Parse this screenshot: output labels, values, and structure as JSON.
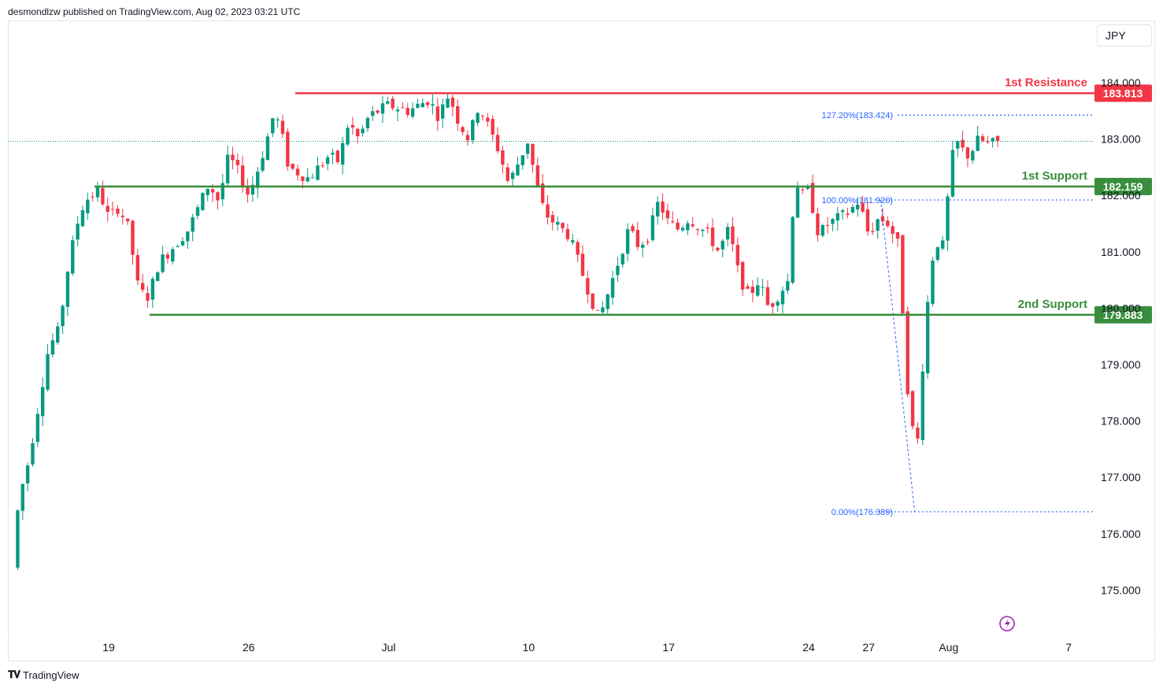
{
  "publisher": "desmondlzw published on TradingView.com, Aug 02, 2023 03:21 UTC",
  "currency": "JPY",
  "footer": "TradingView",
  "colors": {
    "up": "#089981",
    "down": "#f23645",
    "resistance": "#f23645",
    "support": "#388e3c",
    "fib": "#2962ff"
  },
  "chart_data": {
    "type": "candlestick",
    "ylim": [
      174.5,
      184.6
    ],
    "price_ticks": [
      "175.000",
      "176.000",
      "177.000",
      "178.000",
      "179.000",
      "180.000",
      "181.000",
      "182.000",
      "183.000",
      "184.000"
    ],
    "date_ticks": [
      {
        "label": "19",
        "t": 0
      },
      {
        "label": "26",
        "t": 7
      },
      {
        "label": "Jul",
        "t": 14
      },
      {
        "label": "10",
        "t": 21
      },
      {
        "label": "17",
        "t": 28
      },
      {
        "label": "24",
        "t": 35
      },
      {
        "label": "27",
        "t": 38
      },
      {
        "label": "Aug",
        "t": 42
      },
      {
        "label": "7",
        "t": 48
      }
    ],
    "levels": [
      {
        "name": "1st Resistance",
        "value": 183.813,
        "label": "183.813",
        "kind": "resistance"
      },
      {
        "name": "1st Support",
        "value": 182.159,
        "label": "182.159",
        "kind": "support"
      },
      {
        "name": "2nd Support",
        "value": 179.883,
        "label": "179.883",
        "kind": "support"
      }
    ],
    "fibs": [
      {
        "label": "127.20%(183.424)",
        "value": 183.424
      },
      {
        "label": "100.00%(181.920)",
        "value": 181.92
      },
      {
        "label": "0.00%(176.389)",
        "value": 176.389
      }
    ],
    "last_price": 182.96,
    "anchors": [
      [
        -4.8,
        175.4
      ],
      [
        -4.5,
        176.6
      ],
      [
        -4.0,
        177.3
      ],
      [
        -3.5,
        178.3
      ],
      [
        -3.0,
        179.3
      ],
      [
        -2.5,
        179.6
      ],
      [
        -2.0,
        180.8
      ],
      [
        -1.5,
        181.6
      ],
      [
        -1.2,
        181.9
      ],
      [
        -0.5,
        182.1
      ],
      [
        0.0,
        181.6
      ],
      [
        0.5,
        181.8
      ],
      [
        1.0,
        181.4
      ],
      [
        1.5,
        180.3
      ],
      [
        2.0,
        180.2
      ],
      [
        2.5,
        180.8
      ],
      [
        3.0,
        181.0
      ],
      [
        4.0,
        181.4
      ],
      [
        5.0,
        182.2
      ],
      [
        5.5,
        181.9
      ],
      [
        6.0,
        182.7
      ],
      [
        6.5,
        182.4
      ],
      [
        7.0,
        182.0
      ],
      [
        7.5,
        182.5
      ],
      [
        8.0,
        183.1
      ],
      [
        8.3,
        183.5
      ],
      [
        8.7,
        183.0
      ],
      [
        9.0,
        182.5
      ],
      [
        10.0,
        182.3
      ],
      [
        11.0,
        182.7
      ],
      [
        11.5,
        182.6
      ],
      [
        12.0,
        183.3
      ],
      [
        12.5,
        183.0
      ],
      [
        13.0,
        183.4
      ],
      [
        14.0,
        183.6
      ],
      [
        15.0,
        183.5
      ],
      [
        16.0,
        183.7
      ],
      [
        16.5,
        183.4
      ],
      [
        17.0,
        183.8
      ],
      [
        17.5,
        183.3
      ],
      [
        18.0,
        183.0
      ],
      [
        18.5,
        183.6
      ],
      [
        19.0,
        183.2
      ],
      [
        19.5,
        182.8
      ],
      [
        20.0,
        182.2
      ],
      [
        20.5,
        182.6
      ],
      [
        21.0,
        183.0
      ],
      [
        21.3,
        182.3
      ],
      [
        21.7,
        181.8
      ],
      [
        22.0,
        181.6
      ],
      [
        23.0,
        181.3
      ],
      [
        23.5,
        180.8
      ],
      [
        24.0,
        180.3
      ],
      [
        24.5,
        179.8
      ],
      [
        25.0,
        180.3
      ],
      [
        26.0,
        181.4
      ],
      [
        26.5,
        181.1
      ],
      [
        27.0,
        181.3
      ],
      [
        27.5,
        181.9
      ],
      [
        28.0,
        181.5
      ],
      [
        28.5,
        181.4
      ],
      [
        29.0,
        181.6
      ],
      [
        30.0,
        181.3
      ],
      [
        30.5,
        181.0
      ],
      [
        31.0,
        181.4
      ],
      [
        31.5,
        180.6
      ],
      [
        32.0,
        180.2
      ],
      [
        32.5,
        180.5
      ],
      [
        33.0,
        180.0
      ],
      [
        34.0,
        180.5
      ],
      [
        34.3,
        182.3
      ],
      [
        34.7,
        182.0
      ],
      [
        35.0,
        182.1
      ],
      [
        35.5,
        181.3
      ],
      [
        36.0,
        181.5
      ],
      [
        37.0,
        181.7
      ],
      [
        37.5,
        181.9
      ],
      [
        38.0,
        181.3
      ],
      [
        38.5,
        181.6
      ],
      [
        39.0,
        181.5
      ],
      [
        39.5,
        181.1
      ],
      [
        40.0,
        178.3
      ],
      [
        40.4,
        177.4
      ],
      [
        40.8,
        179.5
      ],
      [
        41.0,
        180.3
      ],
      [
        41.3,
        181.2
      ],
      [
        41.7,
        181.1
      ],
      [
        42.0,
        182.1
      ],
      [
        42.3,
        183.0
      ],
      [
        42.7,
        182.8
      ],
      [
        43.0,
        182.7
      ],
      [
        43.5,
        183.0
      ],
      [
        44.0,
        182.9
      ],
      [
        44.5,
        182.95
      ]
    ]
  }
}
